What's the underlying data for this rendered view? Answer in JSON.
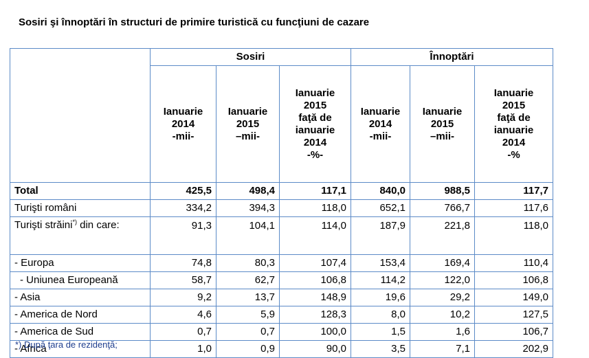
{
  "title": "Sosiri şi înnoptări  în structuri de primire turistică cu funcţiuni de cazare",
  "groups": {
    "sosiri": "Sosiri",
    "innoptari": "Înnoptări"
  },
  "columns": [
    [
      "Ianuarie",
      "2014",
      "-mii-"
    ],
    [
      "Ianuarie",
      "2015",
      "–mii-"
    ],
    [
      "Ianuarie",
      "2015",
      "faţă de",
      "ianuarie",
      "2014",
      "-%-"
    ],
    [
      "Ianuarie",
      "2014",
      "-mii-"
    ],
    [
      "Ianuarie",
      "2015",
      "–mii-"
    ],
    [
      "Ianuarie",
      "2015",
      "faţă de",
      "ianuarie",
      "2014",
      "-%"
    ]
  ],
  "rows": [
    {
      "label": "Total",
      "values": [
        "425,5",
        "498,4",
        "117,1",
        "840,0",
        "988,5",
        "117,7"
      ]
    },
    {
      "label": "Turişti români",
      "values": [
        "334,2",
        "394,3",
        "118,0",
        "652,1",
        "766,7",
        "117,6"
      ]
    },
    {
      "label": "Turişti străini",
      "sup": "*)",
      "label_rest": " din care:",
      "values": [
        "91,3",
        "104,1",
        "114,0",
        "187,9",
        "221,8",
        "118,0"
      ]
    },
    {
      "label": "- Europa",
      "values": [
        "74,8",
        "80,3",
        "107,4",
        "153,4",
        "169,4",
        "110,4"
      ]
    },
    {
      "label": "- Uniunea Europeană",
      "values": [
        "58,7",
        "62,7",
        "106,8",
        "114,2",
        "122,0",
        "106,8"
      ]
    },
    {
      "label": "- Asia",
      "values": [
        "9,2",
        "13,7",
        "148,9",
        "19,6",
        "29,2",
        "149,0"
      ]
    },
    {
      "label": "- America de Nord",
      "values": [
        "4,6",
        "5,9",
        "128,3",
        "8,0",
        "10,2",
        "127,5"
      ]
    },
    {
      "label": "- America de Sud",
      "values": [
        "0,7",
        "0,7",
        "100,0",
        "1,5",
        "1,6",
        "106,7"
      ]
    },
    {
      "label": "- Africa",
      "values": [
        "1,0",
        "0,9",
        "90,0",
        "3,5",
        "7,1",
        "202,9"
      ]
    }
  ],
  "footnote": "*) După ţara de rezidenţă;",
  "colors": {
    "border": "#5b8ac7",
    "footnote": "#1f3f8f"
  }
}
